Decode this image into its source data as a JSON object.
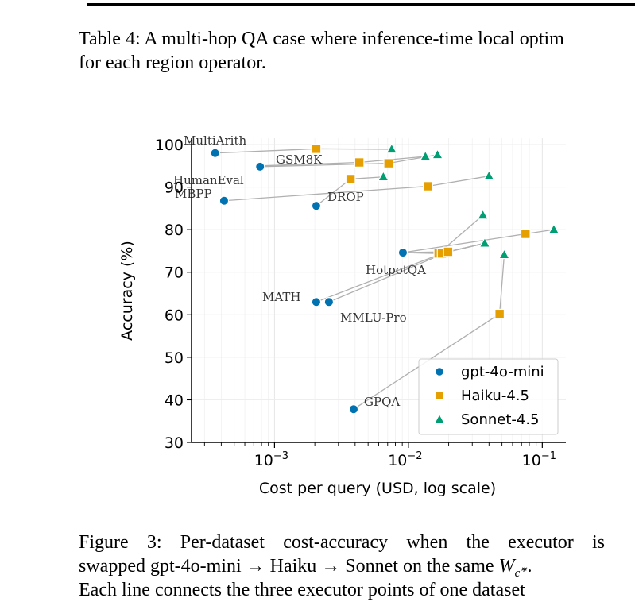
{
  "table_caption": {
    "line1": "Table 4: A multi-hop QA case where inference-time local optim",
    "line2": "for each region operator."
  },
  "figure_caption": {
    "line1": "Figure 3: Per-dataset cost-accuracy when the executor is",
    "line2_prefix": "swapped gpt-4o-mini → Haiku → Sonnet on the same ",
    "line2_math": "Wc*",
    "line3": "Each line connects the three executor points of one dataset"
  },
  "chart_data": {
    "type": "scatter",
    "xlabel": "Cost per query (USD, log scale)",
    "ylabel": "Accuracy (%)",
    "xscale": "log",
    "xlim": [
      0.00024,
      0.15
    ],
    "ylim": [
      30,
      101.5
    ],
    "yticks": [
      30,
      40,
      50,
      60,
      70,
      80,
      90,
      100
    ],
    "xticks": [
      {
        "value": 0.001,
        "base": "10",
        "exp": "−3"
      },
      {
        "value": 0.01,
        "base": "10",
        "exp": "−2"
      },
      {
        "value": 0.1,
        "base": "10",
        "exp": "−1"
      }
    ],
    "grid": true,
    "legend_position": "lower-right",
    "series": [
      {
        "name": "gpt-4o-mini",
        "marker": "circle",
        "color": "#0072B2"
      },
      {
        "name": "Haiku-4.5",
        "marker": "square",
        "color": "#E69F00"
      },
      {
        "name": "Sonnet-4.5",
        "marker": "triangle",
        "color": "#009E73"
      }
    ],
    "datasets": [
      {
        "label": "MultiArith",
        "points": [
          [
            0.00036,
            98.0
          ],
          [
            0.00205,
            99.0
          ],
          [
            0.0075,
            98.9
          ]
        ]
      },
      {
        "label": "GSM8K",
        "points": [
          [
            0.00078,
            95.0
          ],
          [
            0.0043,
            95.8
          ],
          [
            0.0134,
            97.2
          ]
        ]
      },
      {
        "label": "HumanEval",
        "points": [
          [
            0.00078,
            94.8
          ],
          [
            0.0071,
            95.6
          ],
          [
            0.0165,
            97.6
          ]
        ]
      },
      {
        "label": "MBPP",
        "points": [
          [
            0.00042,
            86.8
          ],
          [
            0.014,
            90.2
          ],
          [
            0.04,
            92.6
          ]
        ]
      },
      {
        "label": "DROP",
        "points": [
          [
            0.00205,
            85.6
          ],
          [
            0.0037,
            91.9
          ],
          [
            0.0065,
            92.4
          ]
        ]
      },
      {
        "label": "HotpotQA",
        "points": [
          [
            0.0091,
            74.6
          ],
          [
            0.0168,
            74.4
          ],
          [
            0.036,
            83.4
          ]
        ]
      },
      {
        "label": "",
        "points": [
          [
            0.0091,
            74.6
          ],
          [
            0.075,
            79.0
          ],
          [
            0.122,
            80.0
          ]
        ]
      },
      {
        "label": "",
        "points": [
          [
            0.0091,
            74.6
          ],
          [
            0.0198,
            74.8
          ],
          [
            0.0372,
            76.8
          ]
        ]
      },
      {
        "label": "MATH",
        "points": [
          [
            0.00205,
            63.0
          ],
          [
            0.0178,
            74.4
          ],
          [
            0.0372,
            76.8
          ]
        ]
      },
      {
        "label": "MMLU-Pro",
        "points": [
          [
            0.00255,
            63.0
          ],
          [
            0.0198,
            74.8
          ],
          [
            0.0372,
            76.8
          ]
        ]
      },
      {
        "label": "GPQA",
        "points": [
          [
            0.0039,
            37.8
          ],
          [
            0.048,
            60.2
          ],
          [
            0.052,
            74.1
          ]
        ]
      }
    ]
  }
}
